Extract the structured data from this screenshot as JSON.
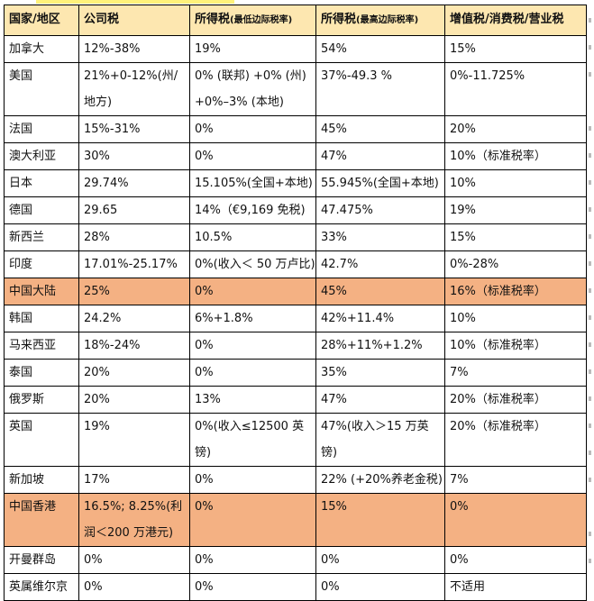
{
  "header": [
    "国家/地区",
    "公司税",
    "所得税",
    "所得税",
    "增值税/消费税/营业税"
  ],
  "header_notes": [
    "",
    "",
    "(最低边际税率)",
    "(最高边际税率)",
    ""
  ],
  "highlight_color": "#f4b183",
  "header_color": "#fde7b0",
  "rows": [
    {
      "cells": [
        "加拿大",
        "12%-38%",
        "19%",
        "54%",
        "15%"
      ]
    },
    {
      "cells": [
        "美国",
        "21%+0-12%(州/地方)",
        "0% (联邦) +0% (州) +0%–3% (本地)",
        "37%-49.3 %",
        "0%-11.725%"
      ]
    },
    {
      "cells": [
        "法国",
        "15%-31%",
        "0%",
        "45%",
        "20%"
      ]
    },
    {
      "cells": [
        "澳大利亚",
        "30%",
        "0%",
        "47%",
        "10%（标准税率）"
      ]
    },
    {
      "cells": [
        "日本",
        "29.74%",
        "15.105%(全国+本地)",
        "55.945%(全国+本地)",
        "10%"
      ]
    },
    {
      "cells": [
        "德国",
        "29.65",
        "14%（€9,169 免税)",
        "47.475%",
        "19%"
      ]
    },
    {
      "cells": [
        "新西兰",
        "28%",
        "10.5%",
        "33%",
        "15%"
      ]
    },
    {
      "cells": [
        "印度",
        "17.01%-25.17%",
        "0%(收入＜ 50 万卢比)",
        "42.7%",
        "0%-28%"
      ]
    },
    {
      "cells": [
        "中国大陆",
        "25%",
        "0%",
        "45%",
        "16%（标准税率）"
      ],
      "highlight": true
    },
    {
      "cells": [
        "韩国",
        "24.2%",
        "6%+1.8%",
        "42%+11.4%",
        "10%"
      ]
    },
    {
      "cells": [
        "马来西亚",
        "18%-24%",
        "0%",
        "28%+11%+1.2%",
        "10%（标准税率）"
      ]
    },
    {
      "cells": [
        "泰国",
        "20%",
        "0%",
        "35%",
        "7%"
      ]
    },
    {
      "cells": [
        "俄罗斯",
        "20%",
        "13%",
        "47%",
        "20%（标准税率）"
      ]
    },
    {
      "cells": [
        "英国",
        "19%",
        "0%(收入≤12500 英镑)",
        "47%(收入＞15 万英镑)",
        "20%（标准税率）"
      ]
    },
    {
      "cells": [
        "新加坡",
        "17%",
        "0%",
        "22% (+20%养老金税)",
        "7%"
      ]
    },
    {
      "cells": [
        "中国香港",
        "16.5%; 8.25%(利润＜200 万港元)",
        "0%",
        "15%",
        "0%"
      ],
      "highlight": true
    },
    {
      "cells": [
        "开曼群岛",
        "0%",
        "0%",
        "0%",
        "0%"
      ]
    },
    {
      "cells": [
        "英属维尔京",
        "0%",
        "0%",
        "0%",
        "不适用"
      ]
    }
  ]
}
